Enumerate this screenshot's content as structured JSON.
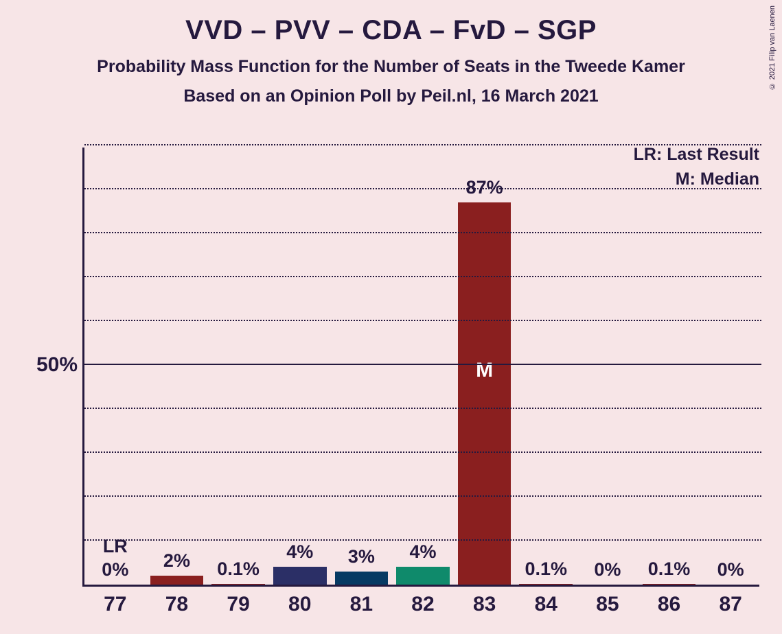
{
  "title": "VVD – PVV – CDA – FvD – SGP",
  "subtitle1": "Probability Mass Function for the Number of Seats in the Tweede Kamer",
  "subtitle2": "Based on an Opinion Poll by Peil.nl, 16 March 2021",
  "copyright": "© 2021 Filip van Laenen",
  "legend": {
    "lr": "LR: Last Result",
    "m": "M: Median"
  },
  "chart": {
    "type": "bar",
    "background_color": "#f7e5e7",
    "axis_color": "#25193e",
    "grid_color": "#25193e",
    "text_color": "#25193e",
    "title_fontsize": 40,
    "subtitle_fontsize": 25,
    "label_fontsize": 27,
    "tick_fontsize": 30,
    "ylim": [
      0,
      100
    ],
    "y_major_ticks": [
      50
    ],
    "y_minor_step": 10,
    "bar_width": 0.86,
    "categories": [
      "77",
      "78",
      "79",
      "80",
      "81",
      "82",
      "83",
      "84",
      "85",
      "86",
      "87"
    ],
    "values": [
      0,
      2,
      0.1,
      4,
      3,
      4,
      87,
      0.1,
      0,
      0.1,
      0
    ],
    "value_labels": [
      "0%",
      "2%",
      "0.1%",
      "4%",
      "3%",
      "4%",
      "87%",
      "0.1%",
      "0%",
      "0.1%",
      "0%"
    ],
    "bar_colors": [
      "#8a1f1f",
      "#8a1f1f",
      "#8a1f1f",
      "#2b2f66",
      "#063a63",
      "#0f8a6b",
      "#8a1f1f",
      "#8a1f1f",
      "#8a1f1f",
      "#8a1f1f",
      "#8a1f1f"
    ],
    "markers": {
      "0": {
        "above_extra": "LR"
      },
      "6": {
        "inside": "M"
      }
    }
  }
}
